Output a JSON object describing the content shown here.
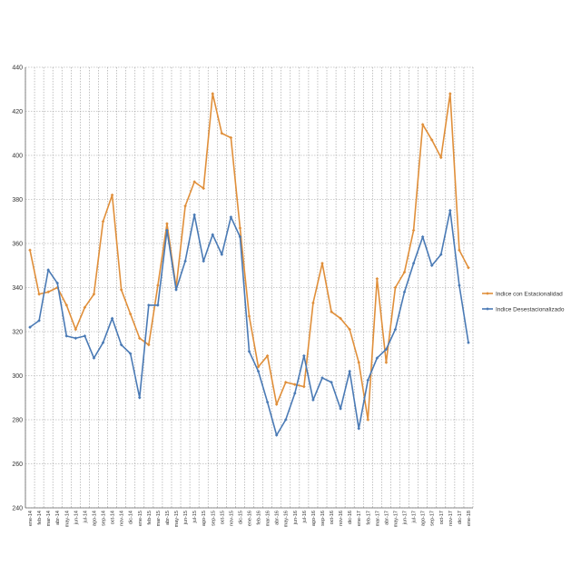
{
  "chart_data": {
    "type": "line",
    "title": "",
    "xlabel": "",
    "ylabel": "",
    "ylim": [
      240,
      440
    ],
    "yticks": [
      240,
      260,
      280,
      300,
      320,
      340,
      360,
      380,
      400,
      420,
      440
    ],
    "grid": true,
    "legend_position": "right",
    "categories": [
      "ene-14",
      "feb-14",
      "mar-14",
      "abr-14",
      "may-14",
      "jun-14",
      "jul-14",
      "ago-14",
      "sep-14",
      "oct-14",
      "nov-14",
      "dic-14",
      "ene-15",
      "feb-15",
      "mar-15",
      "abr-15",
      "may-15",
      "jun-15",
      "jul-15",
      "ago-15",
      "sep-15",
      "oct-15",
      "nov-15",
      "dic-15",
      "ene-16",
      "feb-16",
      "mar-16",
      "abr-16",
      "may-16",
      "jun-16",
      "jul-16",
      "ago-16",
      "sep-16",
      "oct-16",
      "nov-16",
      "dic-16",
      "ene-17",
      "feb-17",
      "mar-17",
      "abr-17",
      "may-17",
      "jun-17",
      "jul-17",
      "ago-17",
      "sep-17",
      "oct-17",
      "nov-17",
      "dic-17",
      "ene-18"
    ],
    "series": [
      {
        "name": "Indice con Estacionalidad",
        "color": "#e08f3a",
        "values": [
          357,
          337,
          338,
          340,
          332,
          321,
          331,
          337,
          370,
          382,
          339,
          328,
          317,
          314,
          341,
          369,
          340,
          377,
          388,
          385,
          428,
          410,
          408,
          367,
          327,
          304,
          309,
          287,
          297,
          296,
          295,
          333,
          351,
          329,
          326,
          321,
          306,
          280,
          344,
          306,
          340,
          347,
          366,
          414,
          407,
          399,
          428,
          357,
          349
        ]
      },
      {
        "name": "Indice Desestacionalizado",
        "color": "#4a7ab5",
        "values": [
          322,
          325,
          348,
          342,
          318,
          317,
          318,
          308,
          315,
          326,
          314,
          310,
          290,
          332,
          332,
          366,
          339,
          352,
          373,
          352,
          364,
          355,
          372,
          363,
          311,
          302,
          288,
          273,
          280,
          292,
          309,
          289,
          299,
          297,
          285,
          302,
          276,
          298,
          308,
          312,
          321,
          338,
          351,
          363,
          350,
          355,
          375,
          341,
          315
        ]
      }
    ]
  }
}
